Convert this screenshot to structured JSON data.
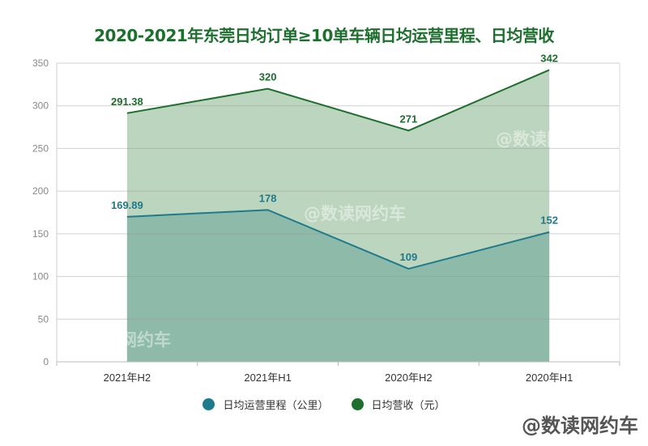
{
  "chart_data": {
    "type": "area",
    "title": "2020-2021年东莞日均订单≥10单车辆日均运营里程、日均营收",
    "categories": [
      "2021年H2",
      "2021年H1",
      "2020年H2",
      "2020年H1"
    ],
    "ylim": [
      0,
      350
    ],
    "yticks": [
      0,
      50,
      100,
      150,
      200,
      250,
      300,
      350
    ],
    "grid": true,
    "legend": "bottom",
    "series": [
      {
        "name": "日均营收（元）",
        "values": [
          291.38,
          320,
          271,
          342
        ],
        "labels": [
          "291.38",
          "320",
          "271",
          "342"
        ],
        "line_color": "#1e6e2e",
        "fill_color": "#bcd5be"
      },
      {
        "name": "日均运营里程（公里）",
        "values": [
          169.89,
          178,
          109,
          152
        ],
        "labels": [
          "169.89",
          "178",
          "109",
          "152"
        ],
        "line_color": "#1f7a8c",
        "fill_color": "#8ab8a8"
      }
    ]
  },
  "watermark": "@数读网约车"
}
